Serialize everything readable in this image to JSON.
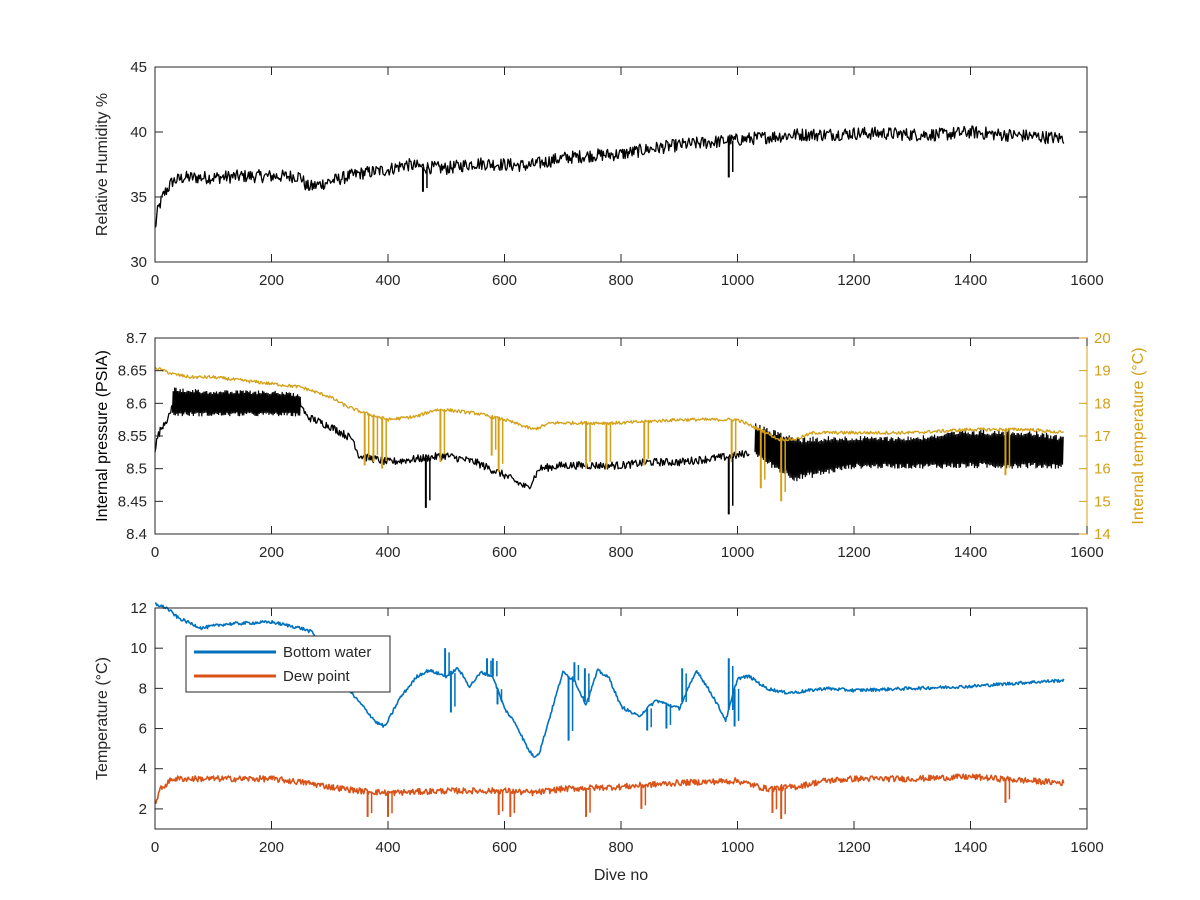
{
  "figure": {
    "background": "#ffffff",
    "axis_color": "#262626"
  },
  "chart_data": [
    {
      "type": "line",
      "title": "",
      "xlabel": "",
      "ylabel": "Relative Humidity %",
      "xlim": [
        0,
        1600
      ],
      "ylim": [
        30,
        45
      ],
      "xticks": [
        0,
        200,
        400,
        600,
        800,
        1000,
        1200,
        1400,
        1600
      ],
      "yticks": [
        30,
        35,
        40,
        45
      ],
      "grid": false,
      "legend": null,
      "series": [
        {
          "color": "#000000",
          "noise": 0.5,
          "x": [
            0,
            5,
            15,
            30,
            50,
            100,
            150,
            200,
            250,
            260,
            270,
            300,
            350,
            400,
            430,
            460,
            500,
            550,
            600,
            640,
            700,
            750,
            800,
            850,
            900,
            950,
            1000,
            1050,
            1100,
            1150,
            1200,
            1250,
            1300,
            1350,
            1400,
            1450,
            1500,
            1560
          ],
          "y": [
            32.5,
            34.0,
            35.2,
            36.2,
            36.5,
            36.5,
            36.6,
            36.6,
            36.6,
            35.8,
            35.8,
            36.2,
            36.8,
            37.1,
            37.5,
            37.3,
            37.2,
            37.6,
            37.5,
            37.4,
            38.0,
            38.2,
            38.3,
            38.7,
            39.0,
            39.2,
            39.4,
            39.6,
            39.8,
            39.8,
            39.9,
            39.9,
            39.8,
            39.8,
            40.0,
            39.8,
            39.7,
            39.5
          ]
        }
      ],
      "spikes": [
        {
          "x": 460,
          "y": 35.4
        },
        {
          "x": 985,
          "y": 36.5
        }
      ]
    },
    {
      "type": "line",
      "title": "",
      "xlabel": "",
      "ylabel": "Internal pressure (PSIA)",
      "y2label": "Internal temperature (°C)",
      "xlim": [
        0,
        1600
      ],
      "ylim": [
        8.4,
        8.7
      ],
      "y2lim": [
        14,
        20
      ],
      "xticks": [
        0,
        200,
        400,
        600,
        800,
        1000,
        1200,
        1400,
        1600
      ],
      "yticks": [
        8.4,
        8.45,
        8.5,
        8.55,
        8.6,
        8.65,
        8.7
      ],
      "y2ticks": [
        14,
        15,
        16,
        17,
        18,
        19,
        20
      ],
      "y2_color": "#d4a017",
      "grid": false,
      "legend": null,
      "series": [
        {
          "name": "",
          "axis": "left",
          "color": "#000000",
          "noise": 0.006,
          "x": [
            0,
            5,
            15,
            25,
            30,
            250,
            260,
            300,
            340,
            350,
            400,
            450,
            500,
            550,
            600,
            640,
            660,
            700,
            800,
            850,
            900,
            1000,
            1020
          ],
          "y": [
            8.53,
            8.55,
            8.57,
            8.58,
            8.6,
            8.6,
            8.58,
            8.565,
            8.545,
            8.52,
            8.51,
            8.515,
            8.52,
            8.51,
            8.49,
            8.47,
            8.5,
            8.505,
            8.505,
            8.51,
            8.51,
            8.52,
            8.525
          ]
        },
        {
          "name": "",
          "axis": "left",
          "color": "#000000",
          "band": true,
          "x": [
            1030,
            1060,
            1100,
            1150,
            1200,
            1300,
            1400,
            1500,
            1560
          ],
          "lo": [
            8.52,
            8.5,
            8.48,
            8.49,
            8.5,
            8.5,
            8.5,
            8.5,
            8.5
          ],
          "hi": [
            8.57,
            8.56,
            8.55,
            8.55,
            8.55,
            8.55,
            8.56,
            8.56,
            8.55
          ]
        },
        {
          "name": "",
          "axis": "left",
          "color": "#000000",
          "band": true,
          "x": [
            30,
            100,
            200,
            250
          ],
          "lo": [
            8.58,
            8.58,
            8.58,
            8.58
          ],
          "hi": [
            8.625,
            8.62,
            8.62,
            8.615
          ]
        },
        {
          "name": "",
          "axis": "right",
          "color": "#d4a017",
          "noise": 0.05,
          "x": [
            0,
            30,
            60,
            100,
            200,
            250,
            300,
            330,
            360,
            400,
            450,
            480,
            500,
            550,
            600,
            650,
            680,
            700,
            800,
            900,
            1000,
            1050,
            1070,
            1100,
            1130,
            1200,
            1250,
            1300,
            1400,
            1500,
            1560
          ],
          "y": [
            19.1,
            18.9,
            18.8,
            18.8,
            18.6,
            18.5,
            18.2,
            17.9,
            17.7,
            17.5,
            17.6,
            17.8,
            17.8,
            17.7,
            17.5,
            17.2,
            17.4,
            17.4,
            17.4,
            17.5,
            17.5,
            17.1,
            16.9,
            16.9,
            17.1,
            17.1,
            17.1,
            17.1,
            17.2,
            17.2,
            17.1
          ]
        }
      ],
      "spikes": [
        {
          "axis": "right",
          "color": "#d4a017",
          "x": 360,
          "y": 16.1
        },
        {
          "axis": "right",
          "color": "#d4a017",
          "x": 375,
          "y": 16.2
        },
        {
          "axis": "right",
          "color": "#d4a017",
          "x": 390,
          "y": 16.0
        },
        {
          "axis": "right",
          "color": "#d4a017",
          "x": 490,
          "y": 16.2
        },
        {
          "axis": "right",
          "color": "#d4a017",
          "x": 578,
          "y": 16.4
        },
        {
          "axis": "right",
          "color": "#d4a017",
          "x": 590,
          "y": 15.9
        },
        {
          "axis": "right",
          "color": "#d4a017",
          "x": 740,
          "y": 16.0
        },
        {
          "axis": "right",
          "color": "#d4a017",
          "x": 775,
          "y": 16.0
        },
        {
          "axis": "right",
          "color": "#d4a017",
          "x": 840,
          "y": 16.1
        },
        {
          "axis": "right",
          "color": "#d4a017",
          "x": 990,
          "y": 16.2
        },
        {
          "axis": "right",
          "color": "#d4a017",
          "x": 1040,
          "y": 15.4
        },
        {
          "axis": "right",
          "color": "#d4a017",
          "x": 1075,
          "y": 15.0
        },
        {
          "axis": "right",
          "color": "#d4a017",
          "x": 1460,
          "y": 15.8
        },
        {
          "axis": "left",
          "color": "#000000",
          "x": 465,
          "y": 8.44
        },
        {
          "axis": "left",
          "color": "#000000",
          "x": 985,
          "y": 8.43
        }
      ]
    },
    {
      "type": "line",
      "title": "",
      "xlabel": "Dive no",
      "ylabel": "Temperature (°C)",
      "xlim": [
        0,
        1600
      ],
      "ylim": [
        1,
        12
      ],
      "xticks": [
        0,
        200,
        400,
        600,
        800,
        1000,
        1200,
        1400,
        1600
      ],
      "yticks": [
        2,
        4,
        6,
        8,
        10,
        12
      ],
      "grid": false,
      "legend": "top-left",
      "series": [
        {
          "name": "Bottom water",
          "color": "#0072bd",
          "noise": 0.08,
          "x": [
            0,
            20,
            40,
            80,
            120,
            200,
            250,
            270,
            290,
            300,
            330,
            360,
            380,
            395,
            420,
            450,
            470,
            500,
            520,
            540,
            560,
            580,
            600,
            620,
            640,
            650,
            660,
            680,
            700,
            720,
            740,
            760,
            780,
            800,
            830,
            860,
            900,
            930,
            960,
            980,
            1000,
            1020,
            1050,
            1080,
            1100,
            1150,
            1200,
            1300,
            1400,
            1500,
            1560
          ],
          "y": [
            12.2,
            12.0,
            11.5,
            11.0,
            11.2,
            11.3,
            11.0,
            10.8,
            9.8,
            9.2,
            8.0,
            7.0,
            6.3,
            6.1,
            7.5,
            8.6,
            8.9,
            8.6,
            9.0,
            8.1,
            8.8,
            8.6,
            7.0,
            6.2,
            5.0,
            4.6,
            4.8,
            6.8,
            8.8,
            8.4,
            7.2,
            8.9,
            8.5,
            7.1,
            6.6,
            7.4,
            7.0,
            8.9,
            7.5,
            6.4,
            8.5,
            8.6,
            8.0,
            7.8,
            7.8,
            8.0,
            7.9,
            8.0,
            8.1,
            8.3,
            8.4
          ]
        },
        {
          "name": "Dew point",
          "color": "#d95319",
          "noise": 0.15,
          "x": [
            0,
            10,
            30,
            100,
            200,
            260,
            300,
            350,
            400,
            500,
            600,
            650,
            700,
            800,
            900,
            1000,
            1050,
            1100,
            1150,
            1200,
            1300,
            1400,
            1500,
            1560
          ],
          "y": [
            2.3,
            3.0,
            3.5,
            3.5,
            3.5,
            3.3,
            3.1,
            2.9,
            2.8,
            2.9,
            2.9,
            2.8,
            3.0,
            3.1,
            3.3,
            3.4,
            3.0,
            3.1,
            3.4,
            3.5,
            3.5,
            3.6,
            3.4,
            3.3
          ]
        }
      ],
      "spikes": [
        {
          "color": "#0072bd",
          "x": 498,
          "y": 10.0
        },
        {
          "color": "#0072bd",
          "x": 508,
          "y": 6.8
        },
        {
          "color": "#0072bd",
          "x": 570,
          "y": 9.5
        },
        {
          "color": "#0072bd",
          "x": 580,
          "y": 9.5
        },
        {
          "color": "#0072bd",
          "x": 588,
          "y": 7.2
        },
        {
          "color": "#0072bd",
          "x": 710,
          "y": 5.4
        },
        {
          "color": "#0072bd",
          "x": 720,
          "y": 9.3
        },
        {
          "color": "#0072bd",
          "x": 738,
          "y": 9.0
        },
        {
          "color": "#0072bd",
          "x": 845,
          "y": 5.9
        },
        {
          "color": "#0072bd",
          "x": 878,
          "y": 6.0
        },
        {
          "color": "#0072bd",
          "x": 905,
          "y": 9.0
        },
        {
          "color": "#0072bd",
          "x": 985,
          "y": 9.5
        },
        {
          "color": "#0072bd",
          "x": 995,
          "y": 6.1
        },
        {
          "color": "#d95319",
          "x": 365,
          "y": 1.6
        },
        {
          "color": "#d95319",
          "x": 400,
          "y": 1.6
        },
        {
          "color": "#d95319",
          "x": 590,
          "y": 1.7
        },
        {
          "color": "#d95319",
          "x": 610,
          "y": 1.6
        },
        {
          "color": "#d95319",
          "x": 740,
          "y": 1.6
        },
        {
          "color": "#d95319",
          "x": 835,
          "y": 2.0
        },
        {
          "color": "#d95319",
          "x": 1060,
          "y": 1.8
        },
        {
          "color": "#d95319",
          "x": 1075,
          "y": 1.5
        },
        {
          "color": "#d95319",
          "x": 1460,
          "y": 2.3
        }
      ]
    }
  ]
}
